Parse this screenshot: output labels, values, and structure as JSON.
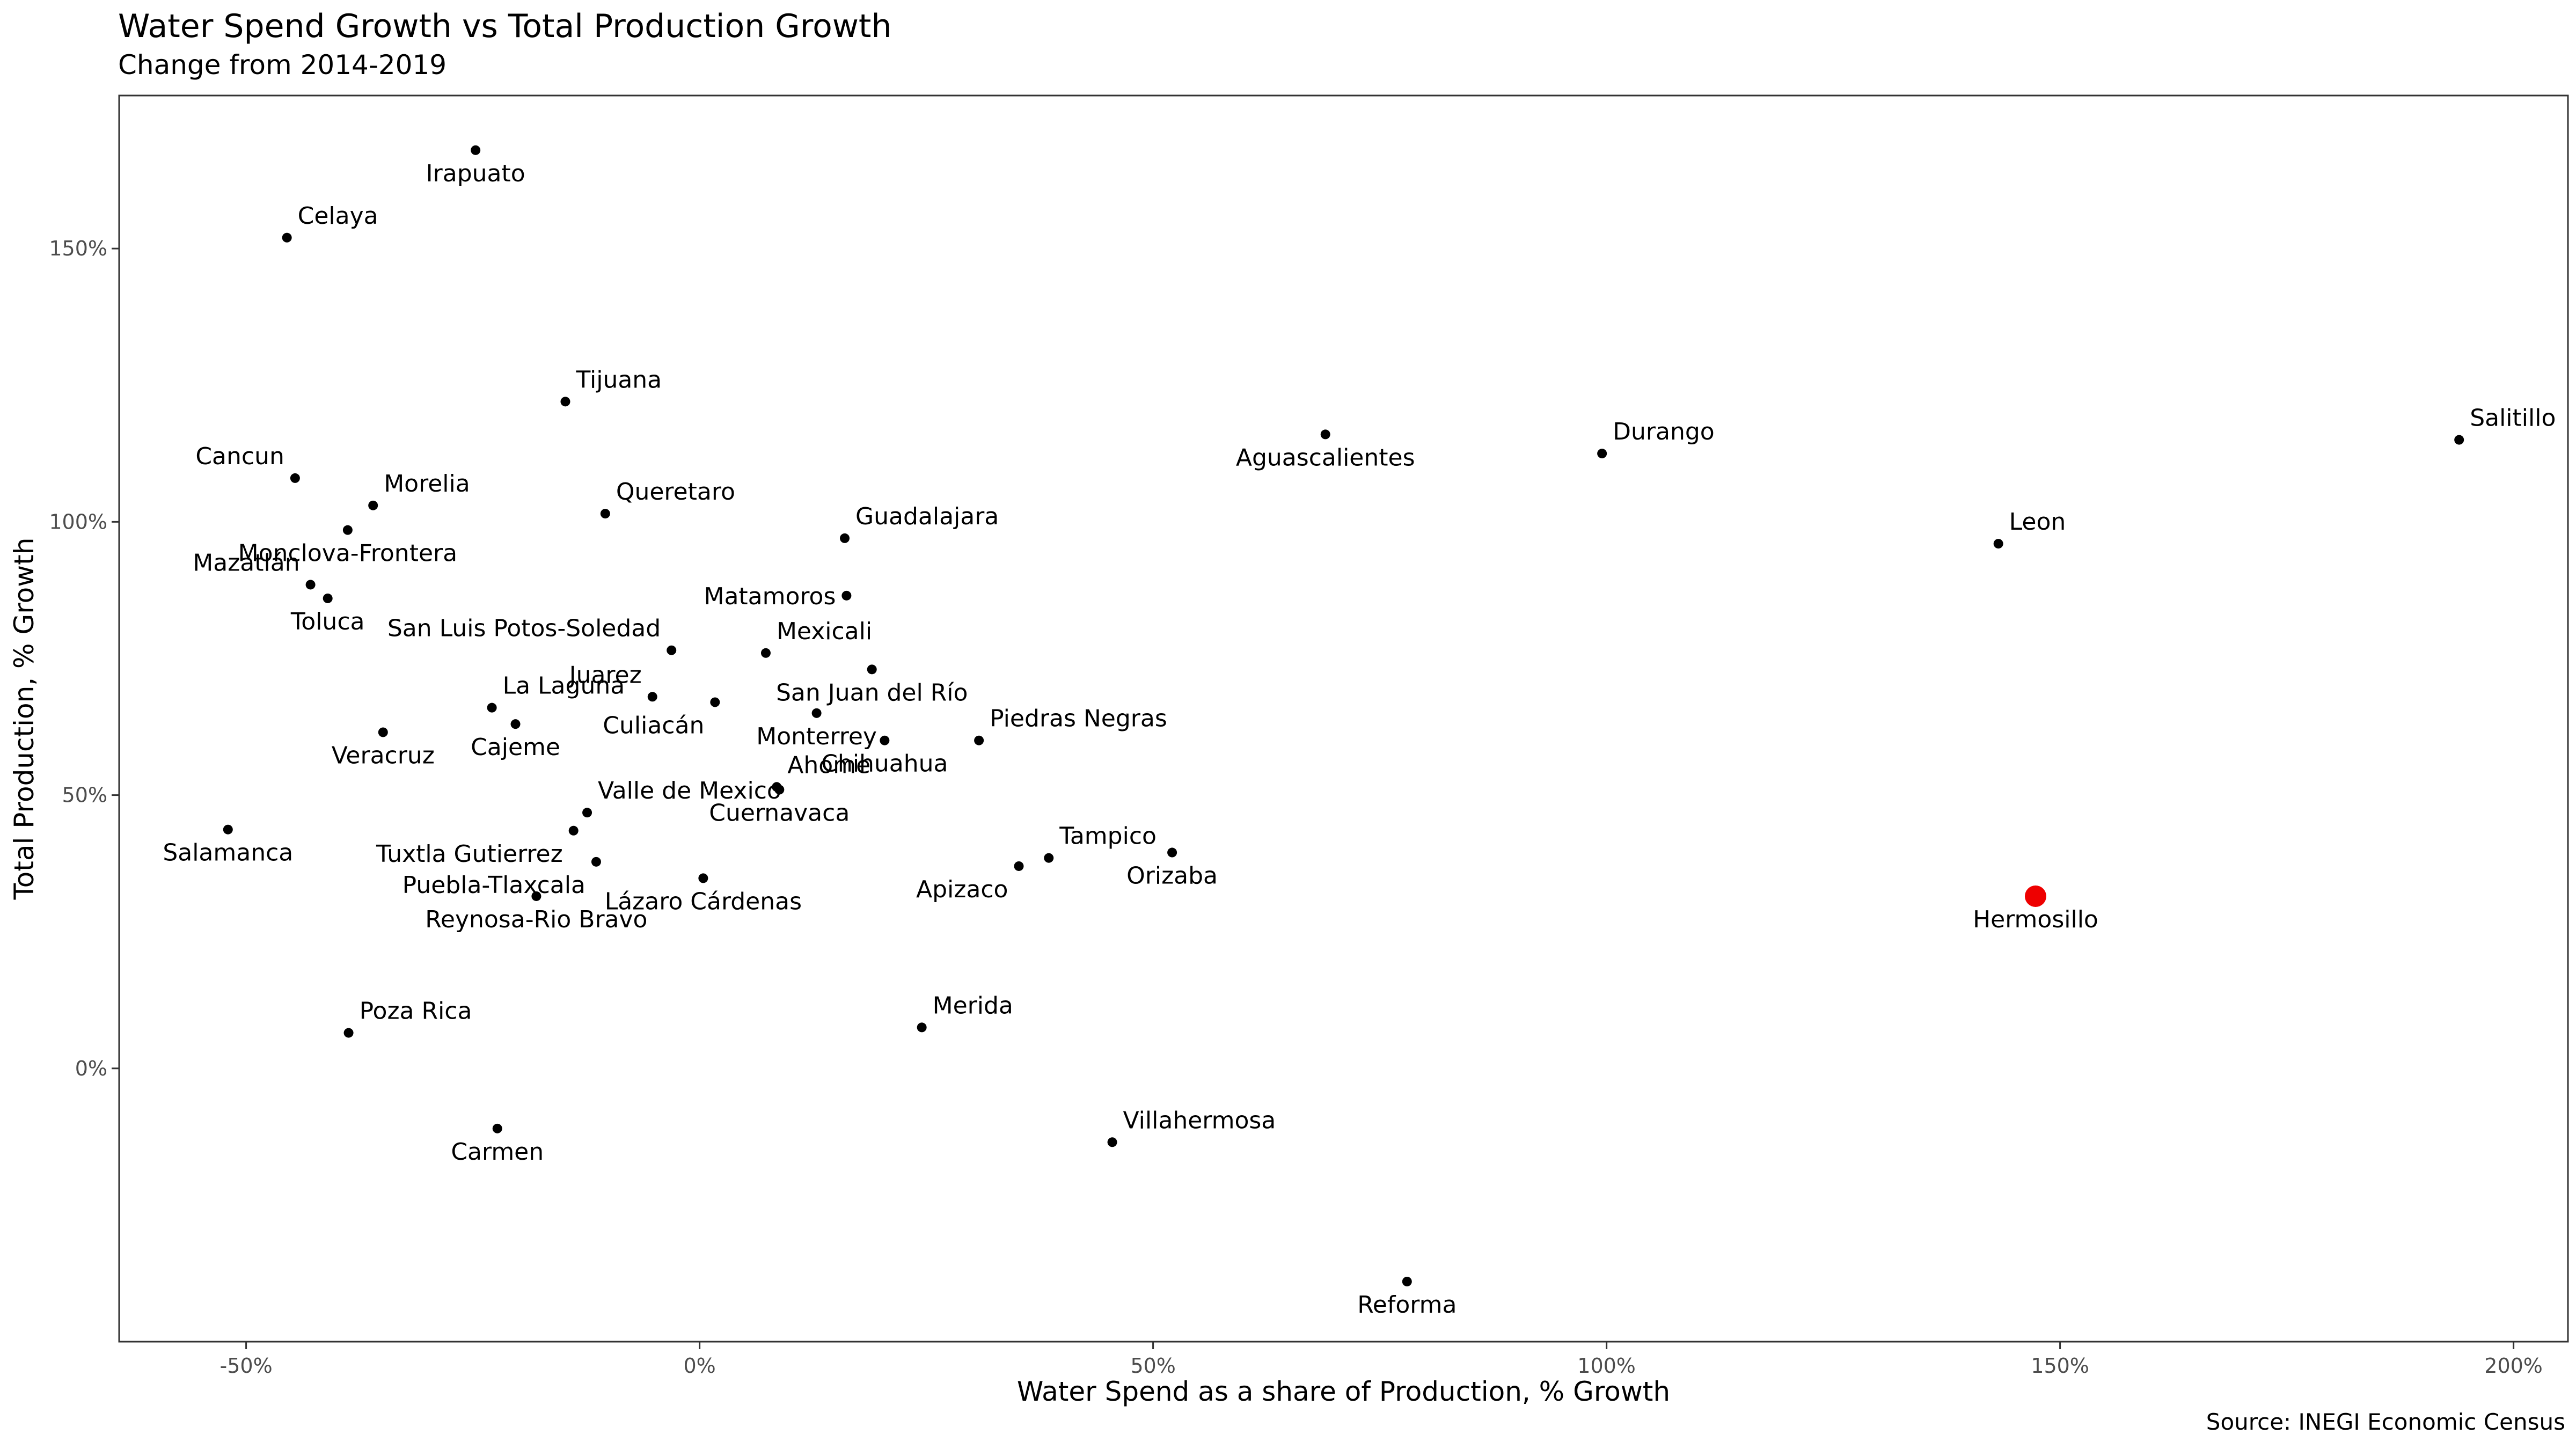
{
  "chart_data": {
    "type": "scatter",
    "title": "Water Spend Growth vs Total Production Growth",
    "subtitle": "Change from 2014-2019",
    "xlabel": "Water Spend as a share of Production, % Growth",
    "ylabel": "Total Production, % Growth",
    "caption": "Source: INEGI Economic Census",
    "xlim": [
      -0.64,
      2.06
    ],
    "ylim": [
      -0.5,
      1.78
    ],
    "xticks": [
      -0.5,
      0,
      0.5,
      1.0,
      1.5,
      2.0
    ],
    "xtick_labels": [
      "-50%",
      "0%",
      "50%",
      "100%",
      "150%",
      "200%"
    ],
    "yticks": [
      0,
      0.5,
      1.0,
      1.5
    ],
    "ytick_labels": [
      "0%",
      "50%",
      "100%",
      "150%"
    ],
    "grid": false,
    "colors": {
      "point": "#000000",
      "highlight": "#ee0000",
      "panel_border": "#333333"
    },
    "highlight": "Hermosillo",
    "points": [
      {
        "name": "Irapuato",
        "x": -0.247,
        "y": 1.68,
        "pos": "below"
      },
      {
        "name": "Celaya",
        "x": -0.455,
        "y": 1.52,
        "pos": "above"
      },
      {
        "name": "Tijuana",
        "x": -0.148,
        "y": 1.22,
        "pos": "above"
      },
      {
        "name": "Cancun",
        "x": -0.446,
        "y": 1.08,
        "pos": "above-left"
      },
      {
        "name": "Morelia",
        "x": -0.36,
        "y": 1.03,
        "pos": "above"
      },
      {
        "name": "Monclova-Frontera",
        "x": -0.388,
        "y": 0.985,
        "pos": "below"
      },
      {
        "name": "Queretaro",
        "x": -0.104,
        "y": 1.015,
        "pos": "above"
      },
      {
        "name": "Mazatlán",
        "x": -0.429,
        "y": 0.885,
        "pos": "above-left"
      },
      {
        "name": "Toluca",
        "x": -0.41,
        "y": 0.86,
        "pos": "below"
      },
      {
        "name": "Guadalajara",
        "x": 0.16,
        "y": 0.97,
        "pos": "above"
      },
      {
        "name": "Matamoros",
        "x": 0.162,
        "y": 0.865,
        "pos": "left"
      },
      {
        "name": "San Luis Potos-Soledad",
        "x": -0.031,
        "y": 0.765,
        "pos": "above-left"
      },
      {
        "name": "Mexicali",
        "x": 0.073,
        "y": 0.76,
        "pos": "above"
      },
      {
        "name": "San Juan del Río",
        "x": 0.19,
        "y": 0.73,
        "pos": "below"
      },
      {
        "name": "La Laguna",
        "x": -0.229,
        "y": 0.66,
        "pos": "above"
      },
      {
        "name": "Juarez",
        "x": -0.052,
        "y": 0.68,
        "pos": "above-left"
      },
      {
        "name": "Culiacán",
        "x": 0.017,
        "y": 0.67,
        "pos": "below-left"
      },
      {
        "name": "Monterrey",
        "x": 0.129,
        "y": 0.65,
        "pos": "below"
      },
      {
        "name": "Piedras Negras",
        "x": 0.308,
        "y": 0.6,
        "pos": "above"
      },
      {
        "name": "Chihuahua",
        "x": 0.204,
        "y": 0.6,
        "pos": "below"
      },
      {
        "name": "Cajeme",
        "x": -0.203,
        "y": 0.63,
        "pos": "below"
      },
      {
        "name": "Veracruz",
        "x": -0.349,
        "y": 0.615,
        "pos": "below"
      },
      {
        "name": "Ahome",
        "x": 0.085,
        "y": 0.515,
        "pos": "above"
      },
      {
        "name": "Cuernavaca",
        "x": 0.088,
        "y": 0.51,
        "pos": "below"
      },
      {
        "name": "Valle de Mexico",
        "x": -0.124,
        "y": 0.468,
        "pos": "above"
      },
      {
        "name": "Salamanca",
        "x": -0.52,
        "y": 0.437,
        "pos": "below"
      },
      {
        "name": "Tuxtla Gutierrez",
        "x": -0.139,
        "y": 0.435,
        "pos": "below-left"
      },
      {
        "name": "Puebla-Tlaxcala",
        "x": -0.114,
        "y": 0.378,
        "pos": "below-left"
      },
      {
        "name": "Reynosa-Rio Bravo",
        "x": -0.18,
        "y": 0.315,
        "pos": "below"
      },
      {
        "name": "Lázaro Cárdenas",
        "x": 0.004,
        "y": 0.348,
        "pos": "below"
      },
      {
        "name": "Tampico",
        "x": 0.385,
        "y": 0.385,
        "pos": "above"
      },
      {
        "name": "Apizaco",
        "x": 0.352,
        "y": 0.37,
        "pos": "below-left"
      },
      {
        "name": "Orizaba",
        "x": 0.521,
        "y": 0.395,
        "pos": "below"
      },
      {
        "name": "Poza Rica",
        "x": -0.387,
        "y": 0.065,
        "pos": "above"
      },
      {
        "name": "Merida",
        "x": 0.245,
        "y": 0.075,
        "pos": "above"
      },
      {
        "name": "Carmen",
        "x": -0.223,
        "y": -0.11,
        "pos": "below"
      },
      {
        "name": "Villahermosa",
        "x": 0.455,
        "y": -0.135,
        "pos": "above"
      },
      {
        "name": "Reforma",
        "x": 0.78,
        "y": -0.39,
        "pos": "below"
      },
      {
        "name": "Aguascalientes",
        "x": 0.69,
        "y": 1.16,
        "pos": "below"
      },
      {
        "name": "Durango",
        "x": 0.995,
        "y": 1.125,
        "pos": "above"
      },
      {
        "name": "Salitillo",
        "x": 1.94,
        "y": 1.15,
        "pos": "above"
      },
      {
        "name": "Leon",
        "x": 1.432,
        "y": 0.96,
        "pos": "above"
      },
      {
        "name": "Hermosillo",
        "x": 1.473,
        "y": 0.315,
        "pos": "below"
      }
    ]
  }
}
